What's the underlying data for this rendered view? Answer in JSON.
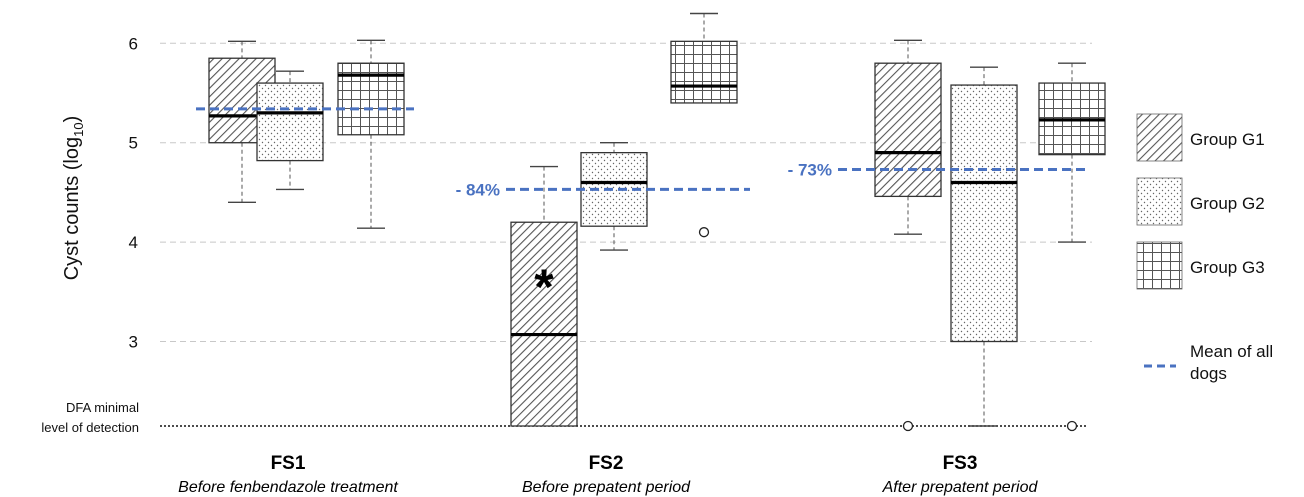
{
  "colors": {
    "mean_line": "#4a72c1",
    "annotation_text": "#4a72c1",
    "grid": "#c8c8c8",
    "box_stroke": "#333333",
    "median": "#000000"
  },
  "chart_data": {
    "type": "box",
    "ylabel_main": "Cyst counts (log",
    "ylabel_sub": "10",
    "ylabel_close": ")",
    "ylim": [
      2.15,
      6.4
    ],
    "yticks": [
      "3",
      "4",
      "5",
      "6"
    ],
    "detection_limit": {
      "value": 2.15,
      "label_lines": [
        "DFA minimal",
        "level of detection"
      ]
    },
    "categories": [
      {
        "code": "FS1",
        "subtitle": "Before fenbendazole treatment"
      },
      {
        "code": "FS2",
        "subtitle": "Before prepatent period"
      },
      {
        "code": "FS3",
        "subtitle": "After prepatent period"
      }
    ],
    "series": [
      {
        "name": "Group G1",
        "pattern": "hatch"
      },
      {
        "name": "Group G2",
        "pattern": "dots"
      },
      {
        "name": "Group G3",
        "pattern": "grid"
      }
    ],
    "boxes": [
      {
        "category": "FS1",
        "series": "Group G1",
        "min": 4.4,
        "q1": 5.0,
        "median": 5.27,
        "q3": 5.85,
        "max": 6.02,
        "outliers": []
      },
      {
        "category": "FS1",
        "series": "Group G2",
        "min": 4.53,
        "q1": 4.82,
        "median": 5.3,
        "q3": 5.6,
        "max": 5.72,
        "outliers": []
      },
      {
        "category": "FS1",
        "series": "Group G3",
        "min": 4.14,
        "q1": 5.08,
        "median": 5.68,
        "q3": 5.8,
        "max": 6.03,
        "outliers": []
      },
      {
        "category": "FS2",
        "series": "Group G1",
        "min": 2.15,
        "q1": 2.15,
        "median": 3.07,
        "q3": 4.2,
        "max": 4.76,
        "outliers": []
      },
      {
        "category": "FS2",
        "series": "Group G2",
        "min": 3.92,
        "q1": 4.16,
        "median": 4.6,
        "q3": 4.9,
        "max": 5.0,
        "outliers": []
      },
      {
        "category": "FS2",
        "series": "Group G3",
        "min": 5.4,
        "q1": 5.4,
        "median": 5.57,
        "q3": 6.02,
        "max": 6.3,
        "outliers": [
          4.1
        ]
      },
      {
        "category": "FS3",
        "series": "Group G1",
        "min": 4.08,
        "q1": 4.46,
        "median": 4.9,
        "q3": 5.8,
        "max": 6.03,
        "outliers": [
          2.15
        ]
      },
      {
        "category": "FS3",
        "series": "Group G2",
        "min": 2.15,
        "q1": 3.0,
        "median": 4.6,
        "q3": 5.58,
        "max": 5.76,
        "outliers": []
      },
      {
        "category": "FS3",
        "series": "Group G3",
        "min": 4.0,
        "q1": 4.88,
        "median": 5.23,
        "q3": 5.6,
        "max": 5.8,
        "outliers": [
          2.15
        ]
      }
    ],
    "means": [
      {
        "category": "FS1",
        "value": 5.34,
        "label": ""
      },
      {
        "category": "FS2",
        "value": 4.53,
        "label": "- 84%"
      },
      {
        "category": "FS3",
        "value": 4.73,
        "label": "- 73%"
      }
    ],
    "significance_marker": {
      "category": "FS2",
      "series": "Group G1",
      "symbol": "*",
      "y": 3.6
    },
    "legend": {
      "position": "right",
      "mean_label_lines": [
        "Mean of all",
        "dogs"
      ]
    },
    "grid": true
  }
}
